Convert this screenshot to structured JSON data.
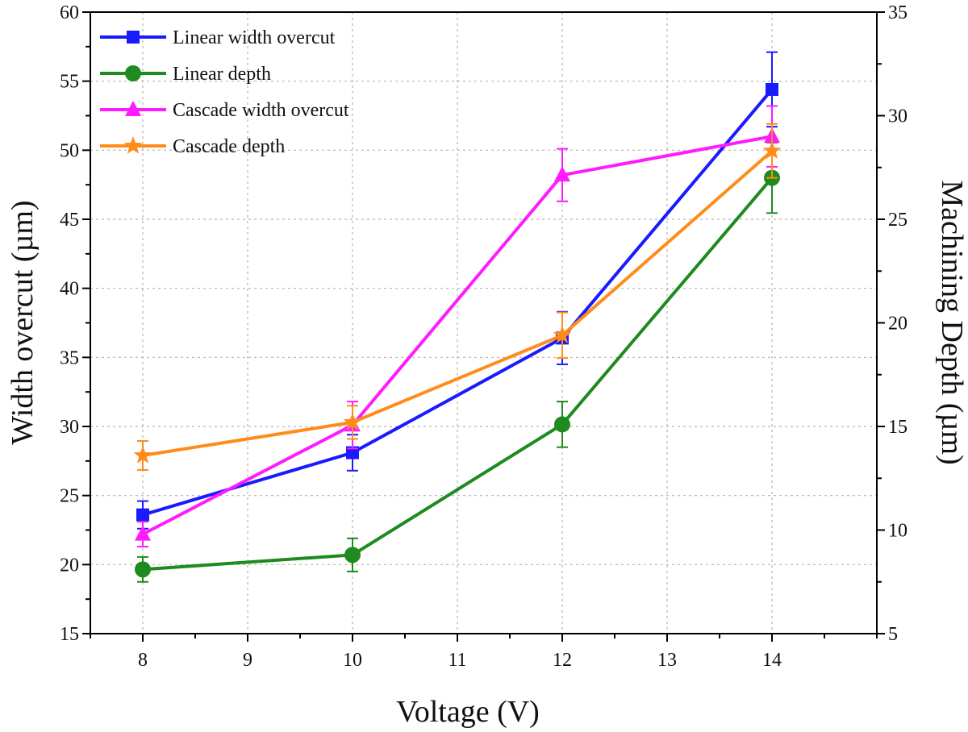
{
  "chart_data": {
    "type": "line",
    "xlabel": "Voltage (V)",
    "ylabel_left": "Width overcut (µm)",
    "ylabel_right": "Machining Depth (µm)",
    "x_ticks": [
      "8",
      "9",
      "10",
      "11",
      "12",
      "13",
      "14"
    ],
    "y_left_ticks": [
      "15",
      "20",
      "25",
      "30",
      "35",
      "40",
      "45",
      "50",
      "55",
      "60"
    ],
    "y_right_ticks": [
      "5",
      "10",
      "15",
      "20",
      "25",
      "30",
      "35"
    ],
    "xlim": [
      7.5,
      15.0
    ],
    "ylim_left": [
      15,
      60
    ],
    "ylim_right": [
      5,
      35
    ],
    "grid": true,
    "legend_position": "top-left",
    "series": [
      {
        "name": "Linear width overcut",
        "axis": "left",
        "marker": "square",
        "color": "#1a1aff",
        "x": [
          8,
          10,
          12,
          14
        ],
        "y": [
          23.6,
          28.1,
          36.4,
          54.4
        ],
        "err": [
          1.0,
          1.3,
          1.9,
          2.7
        ]
      },
      {
        "name": "Linear depth",
        "axis": "right",
        "marker": "circle",
        "color": "#1f8a1f",
        "x": [
          8,
          10,
          12,
          14
        ],
        "y": [
          8.1,
          8.8,
          15.1,
          27.0
        ],
        "err": [
          0.6,
          0.8,
          1.1,
          1.7
        ]
      },
      {
        "name": "Cascade width overcut",
        "axis": "left",
        "marker": "triangle",
        "color": "#ff1aff",
        "x": [
          8,
          10,
          12,
          14
        ],
        "y": [
          22.2,
          30.1,
          48.2,
          51.0
        ],
        "err": [
          0.9,
          1.7,
          1.9,
          2.2
        ]
      },
      {
        "name": "Cascade depth",
        "axis": "right",
        "marker": "star",
        "color": "#ff8c1a",
        "x": [
          8,
          10,
          12,
          14
        ],
        "y": [
          13.6,
          15.2,
          19.4,
          28.3
        ],
        "err": [
          0.7,
          0.8,
          1.1,
          1.3
        ]
      }
    ]
  }
}
